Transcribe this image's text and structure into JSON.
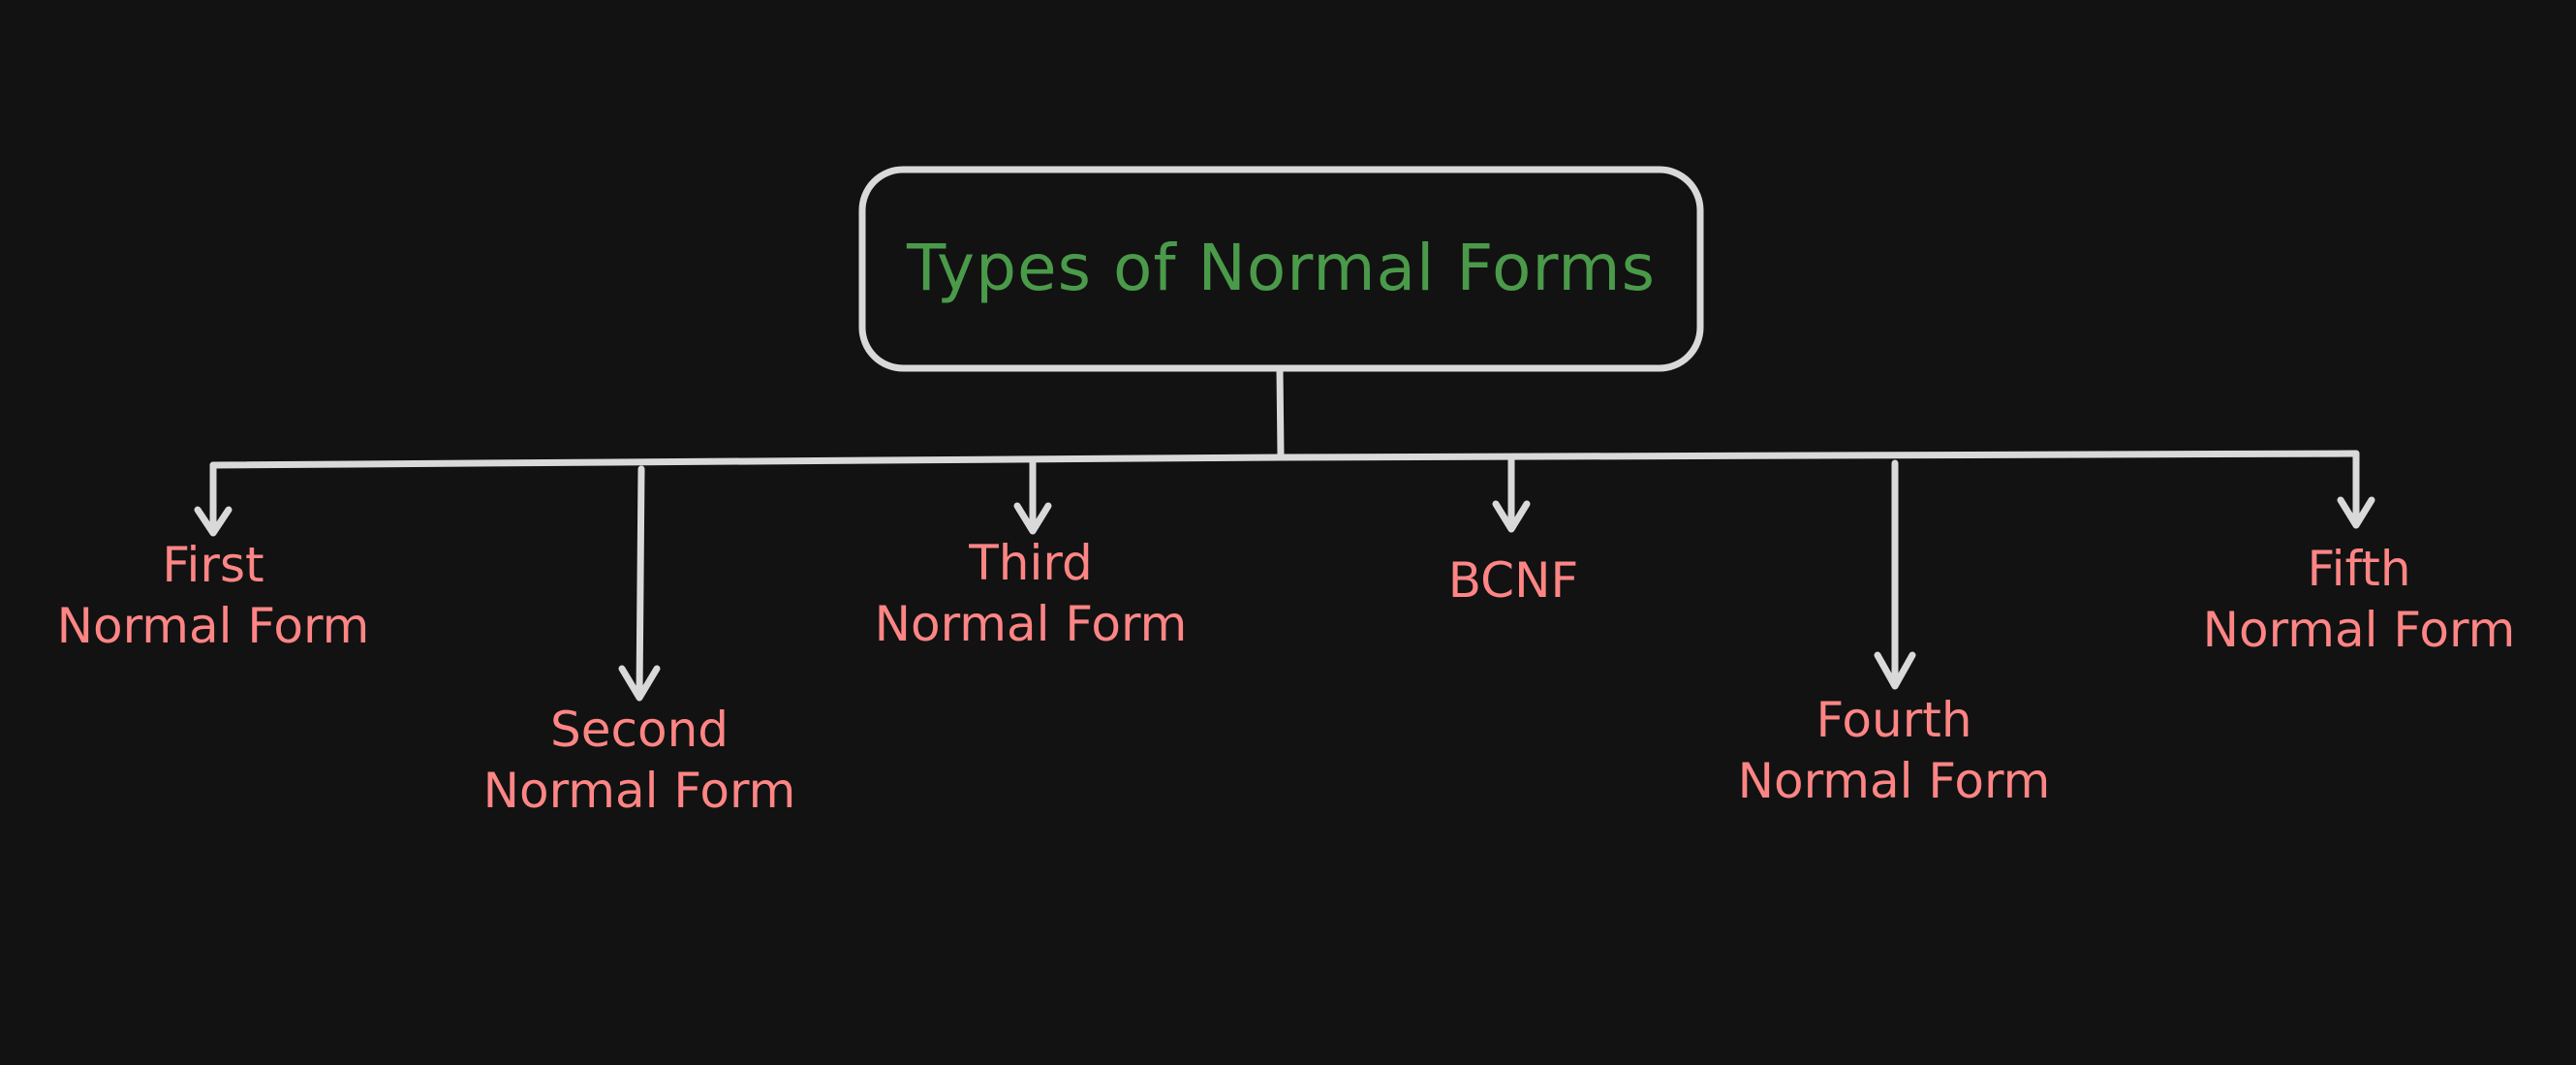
{
  "colors": {
    "background": "#121212",
    "stroke": "#d9d9d9",
    "title": "#4a9a4a",
    "node": "#ff8585"
  },
  "root": {
    "label": "Types of Normal Forms"
  },
  "nodes": [
    {
      "id": "1nf",
      "line1": "First",
      "line2": "Normal Form"
    },
    {
      "id": "2nf",
      "line1": "Second",
      "line2": "Normal Form"
    },
    {
      "id": "3nf",
      "line1": "Third",
      "line2": "Normal Form"
    },
    {
      "id": "bcnf",
      "line1": "BCNF",
      "line2": ""
    },
    {
      "id": "4nf",
      "line1": "Fourth",
      "line2": "Normal Form"
    },
    {
      "id": "5nf",
      "line1": "Fifth",
      "line2": "Normal Form"
    }
  ]
}
